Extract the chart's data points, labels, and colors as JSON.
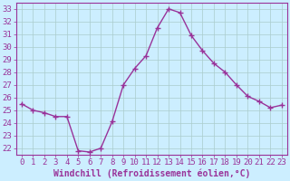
{
  "x": [
    0,
    1,
    2,
    3,
    4,
    5,
    6,
    7,
    8,
    9,
    10,
    11,
    12,
    13,
    14,
    15,
    16,
    17,
    18,
    19,
    20,
    21,
    22,
    23
  ],
  "y": [
    25.5,
    25.0,
    24.8,
    24.5,
    24.5,
    21.8,
    21.7,
    22.0,
    24.1,
    27.0,
    28.3,
    29.3,
    31.5,
    33.0,
    32.7,
    30.9,
    29.7,
    28.7,
    28.0,
    27.0,
    26.1,
    25.7,
    25.2,
    25.4
  ],
  "line_color": "#993399",
  "marker": "+",
  "marker_size": 4,
  "marker_linewidth": 1.0,
  "background_color": "#cceeff",
  "grid_color": "#aacccc",
  "xlabel": "Windchill (Refroidissement éolien,°C)",
  "xlabel_fontsize": 7,
  "ylim": [
    21.5,
    33.5
  ],
  "xlim": [
    -0.5,
    23.5
  ],
  "xtick_labels": [
    "0",
    "1",
    "2",
    "3",
    "4",
    "5",
    "6",
    "7",
    "8",
    "9",
    "10",
    "11",
    "12",
    "13",
    "14",
    "15",
    "16",
    "17",
    "18",
    "19",
    "20",
    "21",
    "22",
    "23"
  ],
  "tick_fontsize": 6.5,
  "axis_color": "#993399",
  "linewidth": 1.0
}
